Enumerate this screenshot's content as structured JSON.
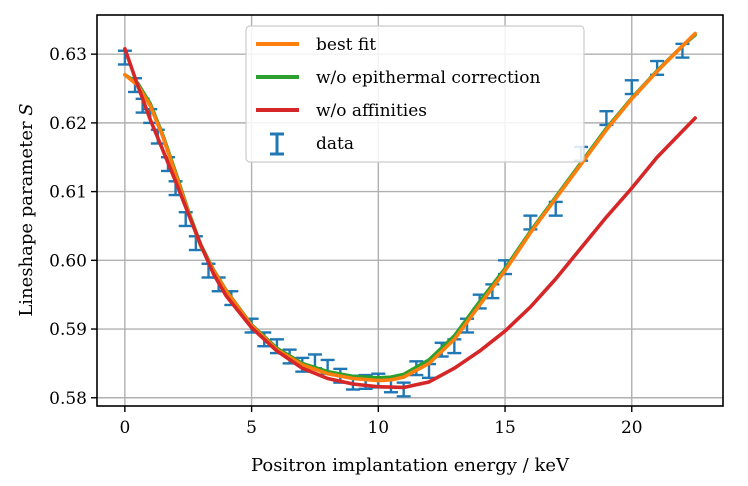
{
  "chart_data": {
    "type": "line",
    "xlabel": "Positron implantation energy / keV",
    "ylabel": "Lineshape parameter",
    "ylabel_symbol": "S",
    "xlim": [
      -1.1,
      23.6
    ],
    "ylim": [
      0.5788,
      0.6357
    ],
    "x_ticks": [
      0,
      5,
      10,
      15,
      20
    ],
    "x_tick_labels": [
      "0",
      "5",
      "10",
      "15",
      "20"
    ],
    "y_ticks": [
      0.58,
      0.59,
      0.6,
      0.61,
      0.62,
      0.63
    ],
    "y_tick_labels": [
      "0.58",
      "0.59",
      "0.60",
      "0.61",
      "0.62",
      "0.63"
    ],
    "grid": true,
    "legend_position": "upper center",
    "series": [
      {
        "name": "best fit",
        "kind": "line",
        "color": "#ff7f0e",
        "x": [
          0,
          0.5,
          1,
          1.5,
          2,
          2.5,
          3,
          3.5,
          4,
          5,
          6,
          7,
          8,
          9,
          10,
          10.5,
          11,
          12,
          13,
          14,
          15,
          16,
          17,
          18,
          19,
          20,
          21,
          22,
          22.5
        ],
        "y": [
          0.627,
          0.6255,
          0.6225,
          0.618,
          0.6125,
          0.607,
          0.602,
          0.5985,
          0.5955,
          0.5905,
          0.587,
          0.5848,
          0.5835,
          0.5828,
          0.5825,
          0.5826,
          0.583,
          0.585,
          0.5885,
          0.5935,
          0.5985,
          0.604,
          0.609,
          0.614,
          0.619,
          0.6235,
          0.6275,
          0.6312,
          0.633
        ]
      },
      {
        "name": "w/o epithermal correction",
        "kind": "line",
        "color": "#2ca02c",
        "x": [
          0,
          0.5,
          1,
          1.5,
          2,
          2.5,
          3,
          3.5,
          4,
          5,
          6,
          7,
          8,
          9,
          10,
          10.5,
          11,
          12,
          13,
          14,
          15,
          16,
          17,
          18,
          19,
          20,
          21,
          22,
          22.5
        ],
        "y": [
          0.627,
          0.6258,
          0.6228,
          0.6182,
          0.6128,
          0.6072,
          0.6022,
          0.5986,
          0.5956,
          0.5906,
          0.5872,
          0.585,
          0.5838,
          0.5831,
          0.5829,
          0.583,
          0.5834,
          0.5855,
          0.589,
          0.594,
          0.5988,
          0.6042,
          0.6092,
          0.6142,
          0.6192,
          0.6236,
          0.6276,
          0.6312,
          0.6328
        ]
      },
      {
        "name": "w/o affinities",
        "kind": "line",
        "color": "#d62728",
        "x": [
          0,
          0.5,
          1,
          1.5,
          2,
          2.5,
          3,
          3.5,
          4,
          5,
          6,
          7,
          8,
          9,
          10,
          11,
          12,
          13,
          14,
          15,
          16,
          17,
          18,
          19,
          20,
          21,
          22,
          22.5
        ],
        "y": [
          0.6308,
          0.6255,
          0.6205,
          0.616,
          0.6115,
          0.6068,
          0.6022,
          0.598,
          0.5948,
          0.5902,
          0.5868,
          0.5843,
          0.5828,
          0.582,
          0.5816,
          0.5815,
          0.5823,
          0.5843,
          0.5868,
          0.5897,
          0.5932,
          0.5973,
          0.6018,
          0.6063,
          0.6105,
          0.615,
          0.6188,
          0.6207
        ]
      },
      {
        "name": "data",
        "kind": "errorbar",
        "color": "#1f77b4",
        "x": [
          0,
          0.4,
          0.7,
          1.0,
          1.3,
          1.7,
          2.0,
          2.4,
          2.8,
          3.3,
          3.7,
          4.2,
          5.0,
          5.5,
          6.0,
          6.5,
          7.0,
          7.5,
          8.0,
          8.5,
          9.0,
          9.5,
          10.0,
          10.5,
          11.0,
          11.5,
          12.0,
          12.5,
          13.0,
          13.5,
          14.0,
          14.5,
          15.0,
          16.0,
          17.0,
          18.0,
          19.0,
          20.0,
          21.0,
          22.0
        ],
        "y": [
          0.6295,
          0.6255,
          0.6225,
          0.621,
          0.618,
          0.614,
          0.6105,
          0.606,
          0.6025,
          0.5985,
          0.5965,
          0.5945,
          0.5905,
          0.5885,
          0.5875,
          0.586,
          0.5848,
          0.5853,
          0.5845,
          0.5832,
          0.5822,
          0.5823,
          0.5825,
          0.5818,
          0.5812,
          0.5843,
          0.5839,
          0.587,
          0.5875,
          0.5905,
          0.594,
          0.5955,
          0.599,
          0.6055,
          0.6075,
          0.6155,
          0.6207,
          0.6252,
          0.628,
          0.6305
        ],
        "err": [
          0.001,
          0.001,
          0.001,
          0.001,
          0.001,
          0.001,
          0.001,
          0.001,
          0.001,
          0.001,
          0.001,
          0.001,
          0.001,
          0.001,
          0.001,
          0.001,
          0.001,
          0.001,
          0.001,
          0.001,
          0.001,
          0.001,
          0.001,
          0.001,
          0.001,
          0.001,
          0.001,
          0.001,
          0.001,
          0.001,
          0.001,
          0.001,
          0.001,
          0.001,
          0.001,
          0.001,
          0.001,
          0.001,
          0.001,
          0.001
        ]
      }
    ]
  }
}
